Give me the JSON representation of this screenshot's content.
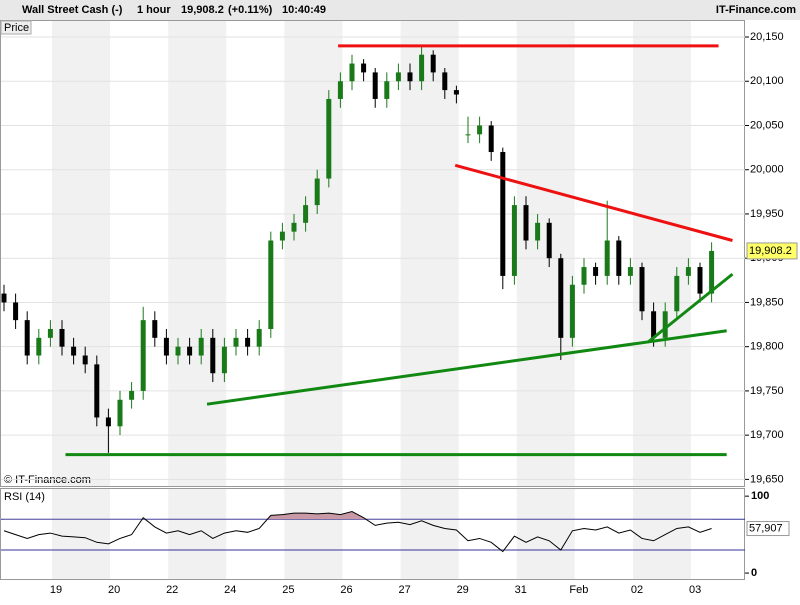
{
  "chart_data": {
    "type": "candlestick",
    "title": "Wall Street Cash (-)",
    "interval": "1 hour",
    "price": "19,908.2",
    "change": "(+0.11%)",
    "time": "10:40:49",
    "brand": "IT-Finance.com",
    "panel_label": "Price",
    "copyright": "© IT-Finance.com",
    "categories": [
      "19",
      "20",
      "22",
      "24",
      "25",
      "26",
      "27",
      "29",
      "31",
      "Feb",
      "02",
      "03"
    ],
    "series": {
      "open": [
        19860,
        19850,
        19830,
        19790,
        19810,
        19820,
        19800,
        19790,
        19780,
        19720,
        19710,
        19740,
        19750,
        19830,
        19810,
        19790,
        19800,
        19790,
        19810,
        19770,
        19800,
        19810,
        19800,
        19820,
        19920,
        19930,
        19940,
        19960,
        19990,
        20080,
        20100,
        20120,
        20110,
        20080,
        20100,
        20110,
        20100,
        20130,
        20110,
        20090,
        20040,
        20040,
        20050,
        20020,
        19880,
        19960,
        19920,
        19940,
        19900,
        19810,
        19870,
        19890,
        19880,
        19920,
        19880,
        19890,
        19840,
        19810,
        19840,
        19880,
        19890,
        19860
      ],
      "high": [
        19870,
        19860,
        19840,
        19820,
        19830,
        19830,
        19810,
        19800,
        19790,
        19730,
        19750,
        19760,
        19845,
        19840,
        19820,
        19810,
        19810,
        19820,
        19820,
        19810,
        19820,
        19820,
        19830,
        19930,
        19940,
        19950,
        19970,
        20000,
        20090,
        20110,
        20130,
        20125,
        20115,
        20110,
        20120,
        20120,
        20140,
        20135,
        20115,
        20095,
        20060,
        20060,
        20055,
        20025,
        19970,
        19970,
        19950,
        19945,
        19905,
        19880,
        19900,
        19895,
        19965,
        19925,
        19900,
        19895,
        19850,
        19850,
        19890,
        19900,
        19895,
        19918
      ],
      "low": [
        19840,
        19820,
        19780,
        19780,
        19800,
        19790,
        19780,
        19770,
        19710,
        19680,
        19700,
        19730,
        19740,
        19800,
        19780,
        19780,
        19780,
        19780,
        19760,
        19760,
        19790,
        19790,
        19790,
        19810,
        19910,
        19920,
        19930,
        19950,
        19980,
        20070,
        20090,
        20100,
        20070,
        20070,
        20090,
        20090,
        20090,
        20100,
        20080,
        20075,
        20030,
        20030,
        20010,
        19865,
        19870,
        19910,
        19910,
        19890,
        19785,
        19800,
        19860,
        19870,
        19870,
        19870,
        19870,
        19830,
        19800,
        19800,
        19830,
        19870,
        19850,
        19850
      ],
      "close": [
        19850,
        19830,
        19790,
        19810,
        19820,
        19800,
        19790,
        19780,
        19720,
        19710,
        19740,
        19750,
        19830,
        19810,
        19790,
        19800,
        19790,
        19810,
        19770,
        19800,
        19810,
        19800,
        19820,
        19920,
        19930,
        19940,
        19960,
        19990,
        20080,
        20100,
        20120,
        20110,
        20080,
        20100,
        20110,
        20100,
        20130,
        20110,
        20090,
        20085,
        20040,
        20050,
        20020,
        19880,
        19960,
        19920,
        19940,
        19900,
        19810,
        19870,
        19890,
        19880,
        19920,
        19880,
        19890,
        19840,
        19810,
        19840,
        19880,
        19890,
        19860,
        19908.2
      ],
      "up_color": "#1a7a1a",
      "down_color": "#000000"
    },
    "ylim": [
      19641.4,
      20153.4
    ],
    "yticks": [
      {
        "value": 19650,
        "label": "19,650"
      },
      {
        "value": 19700,
        "label": "19,700"
      },
      {
        "value": 19750,
        "label": "19,750"
      },
      {
        "value": 19800,
        "label": "19,800"
      },
      {
        "value": 19850,
        "label": "19,850"
      },
      {
        "value": 19900,
        "label": "19,900"
      },
      {
        "value": 19950,
        "label": "19,950"
      },
      {
        "value": 20000,
        "label": "20,000"
      },
      {
        "value": 20050,
        "label": "20,050"
      },
      {
        "value": 20100,
        "label": "20,100"
      },
      {
        "value": 20150,
        "label": "20,150"
      }
    ],
    "grid": true,
    "last_price": {
      "value": 19908.2,
      "label": "19,908.2"
    },
    "trendlines": [
      {
        "color": "#ee1111",
        "x": [
          28.8,
          61.6
        ],
        "values": [
          20140,
          20140
        ]
      },
      {
        "color": "#ee1111",
        "x": [
          38.9,
          62.8
        ],
        "values": [
          20005,
          19920
        ]
      },
      {
        "color": "#118811",
        "x": [
          17.5,
          62.3
        ],
        "values": [
          19735,
          19818
        ]
      },
      {
        "color": "#118811",
        "x": [
          5.3,
          62.3
        ],
        "values": [
          19678,
          19678
        ]
      },
      {
        "color": "#118811",
        "x": [
          55.5,
          62.8
        ],
        "values": [
          19805,
          19882
        ]
      }
    ],
    "rsi": {
      "name": "RSI (14)",
      "values": [
        55,
        50,
        45,
        50,
        52,
        48,
        47,
        46,
        40,
        38,
        45,
        50,
        72,
        60,
        52,
        55,
        50,
        55,
        45,
        52,
        55,
        53,
        58,
        75,
        76,
        78,
        78,
        77,
        78,
        76,
        80,
        72,
        62,
        65,
        66,
        63,
        68,
        62,
        58,
        56,
        42,
        45,
        40,
        28,
        48,
        40,
        47,
        42,
        30,
        55,
        58,
        56,
        60,
        52,
        56,
        45,
        42,
        50,
        58,
        60,
        53,
        57.907
      ],
      "ylim": [
        -9,
        108
      ],
      "yticks": [
        0,
        100
      ],
      "levels": [
        70,
        30
      ],
      "color": "#000000",
      "last": {
        "value": 57.907,
        "label": "57,907"
      }
    }
  }
}
